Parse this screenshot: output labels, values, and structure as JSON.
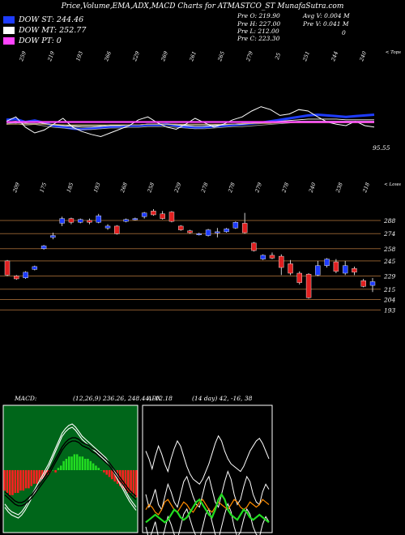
{
  "header": {
    "title": "Price,Volume,EMA,ADX,MACD Charts for ATMASTCO_ST MunafaSutra.com"
  },
  "legend": [
    {
      "label": "DOW ST: 244.46",
      "color": "#1e3cff"
    },
    {
      "label": "DOW MT: 252.77",
      "color": "#ffffff"
    },
    {
      "label": "DOW PT: 0",
      "color": "#ff44ff"
    }
  ],
  "stats": {
    "prev_open": "Pre   O: 219.90",
    "prev_high": "Pre   H: 227.00",
    "prev_low": "Pre   L: 212.00",
    "prev_close": "Pre   C: 223.30",
    "avg_vol": "Avg V: 0.004  M",
    "prev_vol": "Pre   V: 0.041 M",
    "zero": "0"
  },
  "colors": {
    "up": "#1e3cff",
    "down": "#e02020",
    "ema": "#1e3cff",
    "pt": "#ff44ff",
    "macd_up": "#22dd22",
    "macd_down": "#ff2020",
    "adx": "#ff8c00",
    "grid": "#8a5a2e"
  },
  "chart_data": [
    {
      "type": "line",
      "name": "ema-panel",
      "top_labels": [
        "259",
        "219",
        "193",
        "266",
        "229",
        "269",
        "261",
        "265",
        "279",
        "25",
        "251",
        "244",
        "240"
      ],
      "top_right_label": "< Tops",
      "bottom_labels": [
        "209",
        "175",
        "185",
        "193",
        "268",
        "258",
        "229",
        "278",
        "278",
        "279",
        "278",
        "240",
        "238",
        "218"
      ],
      "bottom_right_label": "< Lows",
      "last_value_label": "95.55",
      "series": [
        {
          "values": [
            58,
            59,
            55,
            57,
            54,
            50,
            48,
            46,
            45,
            46,
            47,
            48,
            49,
            50,
            50,
            51,
            51,
            52,
            50,
            48,
            47,
            48,
            49,
            50,
            51,
            52,
            53,
            54,
            56,
            58,
            60,
            62,
            64,
            65,
            64,
            63,
            62,
            63,
            64,
            65
          ]
        },
        {
          "values": [
            55,
            56,
            54,
            55,
            53,
            51,
            50,
            49,
            48,
            48,
            49,
            50,
            50,
            51,
            51,
            52,
            52,
            52,
            51,
            50,
            49,
            49,
            50,
            51,
            52,
            52,
            53,
            54,
            55,
            56,
            57,
            58,
            59,
            59,
            59,
            59,
            58,
            58,
            58,
            58
          ]
        },
        {
          "values": [
            53,
            54,
            53,
            53,
            52,
            51,
            51,
            50,
            50,
            50,
            50,
            51,
            51,
            51,
            51,
            52,
            52,
            52,
            52,
            51,
            51,
            51,
            51,
            52,
            52,
            53,
            53,
            54,
            54,
            55,
            55,
            56,
            56,
            56,
            56,
            56,
            56,
            56,
            56,
            56
          ]
        },
        {
          "values": [
            52,
            52,
            52,
            52,
            52,
            52,
            51,
            51,
            51,
            51,
            51,
            51,
            51,
            51,
            51,
            52,
            52,
            52,
            52,
            52,
            52,
            52,
            52,
            52,
            52,
            53,
            53,
            53,
            53,
            54,
            54,
            54,
            54,
            54,
            54,
            54,
            54,
            54,
            54,
            54
          ]
        },
        {
          "values": [
            56,
            62,
            48,
            40,
            44,
            52,
            60,
            48,
            42,
            38,
            35,
            40,
            45,
            50,
            58,
            62,
            54,
            48,
            45,
            52,
            60,
            54,
            48,
            52,
            58,
            62,
            70,
            76,
            72,
            64,
            66,
            72,
            70,
            62,
            55,
            52,
            50,
            56,
            50,
            48
          ]
        },
        {
          "values": [
            55,
            55,
            55,
            55,
            55,
            55,
            55,
            55,
            55,
            55,
            55,
            55,
            55,
            55,
            55,
            55,
            55,
            55,
            55,
            55,
            55,
            55,
            55,
            55,
            55,
            55,
            55,
            55,
            55,
            55,
            55,
            55,
            55,
            55,
            55,
            55,
            55,
            55,
            55,
            55
          ]
        }
      ]
    },
    {
      "type": "candlestick",
      "name": "price-panel",
      "price_levels": [
        "288",
        "274",
        "258",
        "245",
        "229",
        "215",
        "204",
        "193"
      ],
      "candles": [
        {
          "o": 245,
          "h": 246,
          "l": 229,
          "c": 230
        },
        {
          "o": 229,
          "h": 230,
          "l": 225,
          "c": 226
        },
        {
          "o": 227,
          "h": 234,
          "l": 226,
          "c": 233
        },
        {
          "o": 236,
          "h": 240,
          "l": 235,
          "c": 239
        },
        {
          "o": 258,
          "h": 262,
          "l": 257,
          "c": 261
        },
        {
          "o": 270,
          "h": 275,
          "l": 268,
          "c": 272
        },
        {
          "o": 285,
          "h": 292,
          "l": 282,
          "c": 290
        },
        {
          "o": 290,
          "h": 291,
          "l": 284,
          "c": 286
        },
        {
          "o": 286,
          "h": 290,
          "l": 285,
          "c": 289
        },
        {
          "o": 288,
          "h": 290,
          "l": 284,
          "c": 286
        },
        {
          "o": 286,
          "h": 295,
          "l": 285,
          "c": 293
        },
        {
          "o": 280,
          "h": 284,
          "l": 278,
          "c": 282
        },
        {
          "o": 282,
          "h": 283,
          "l": 273,
          "c": 274
        },
        {
          "o": 287,
          "h": 290,
          "l": 286,
          "c": 289
        },
        {
          "o": 289,
          "h": 291,
          "l": 288,
          "c": 290
        },
        {
          "o": 292,
          "h": 297,
          "l": 290,
          "c": 296
        },
        {
          "o": 298,
          "h": 300,
          "l": 293,
          "c": 294
        },
        {
          "o": 295,
          "h": 298,
          "l": 289,
          "c": 290
        },
        {
          "o": 297,
          "h": 298,
          "l": 286,
          "c": 287
        },
        {
          "o": 282,
          "h": 283,
          "l": 277,
          "c": 278
        },
        {
          "o": 277,
          "h": 278,
          "l": 274,
          "c": 275
        },
        {
          "o": 273,
          "h": 275,
          "l": 272,
          "c": 274
        },
        {
          "o": 272,
          "h": 279,
          "l": 271,
          "c": 278
        },
        {
          "o": 275,
          "h": 280,
          "l": 270,
          "c": 276
        },
        {
          "o": 276,
          "h": 280,
          "l": 275,
          "c": 279
        },
        {
          "o": 280,
          "h": 287,
          "l": 279,
          "c": 286
        },
        {
          "o": 285,
          "h": 296,
          "l": 274,
          "c": 275
        },
        {
          "o": 264,
          "h": 265,
          "l": 255,
          "c": 256
        },
        {
          "o": 247,
          "h": 252,
          "l": 246,
          "c": 251
        },
        {
          "o": 251,
          "h": 254,
          "l": 247,
          "c": 248
        },
        {
          "o": 250,
          "h": 252,
          "l": 230,
          "c": 238
        },
        {
          "o": 242,
          "h": 246,
          "l": 230,
          "c": 232
        },
        {
          "o": 232,
          "h": 234,
          "l": 220,
          "c": 222
        },
        {
          "o": 231,
          "h": 232,
          "l": 205,
          "c": 206
        },
        {
          "o": 230,
          "h": 245,
          "l": 229,
          "c": 240
        },
        {
          "o": 240,
          "h": 248,
          "l": 238,
          "c": 247
        },
        {
          "o": 244,
          "h": 247,
          "l": 232,
          "c": 234
        },
        {
          "o": 232,
          "h": 245,
          "l": 230,
          "c": 240
        },
        {
          "o": 237,
          "h": 239,
          "l": 230,
          "c": 233
        },
        {
          "o": 224,
          "h": 226,
          "l": 217,
          "c": 218
        },
        {
          "o": 219,
          "h": 227,
          "l": 212,
          "c": 223
        }
      ]
    },
    {
      "type": "bar",
      "name": "macd-panel",
      "title": "MACD:",
      "readout": "(12,26,9) 236.26, 248.44, -12.18",
      "histogram": [
        -9,
        -10,
        -11,
        -11,
        -10,
        -10,
        -9,
        -9,
        -8,
        -8,
        -7,
        -6,
        -6,
        -5,
        -4,
        -3,
        -2,
        -1,
        0,
        -1,
        1,
        2,
        4,
        5,
        6,
        6,
        7,
        7,
        6,
        6,
        5,
        5,
        4,
        3,
        2,
        1,
        0,
        -1,
        -2,
        -3,
        -4,
        -5,
        -6,
        -7,
        -8,
        -9,
        -10,
        -10,
        -11,
        -12
      ],
      "lines": [
        {
          "values": [
            -22,
            -25,
            -27,
            -28,
            -29,
            -27,
            -24,
            -20,
            -16,
            -12,
            -8,
            -4,
            0,
            4,
            9,
            14,
            19,
            24,
            27,
            29,
            30,
            28,
            25,
            22,
            20,
            18,
            16,
            14,
            12,
            10,
            8,
            5,
            2,
            -2,
            -6,
            -10,
            -14,
            -18,
            -21,
            -24
          ]
        },
        {
          "values": [
            -14,
            -16,
            -18,
            -20,
            -21,
            -21,
            -20,
            -18,
            -16,
            -13,
            -10,
            -7,
            -4,
            -1,
            3,
            7,
            11,
            15,
            18,
            20,
            21,
            21,
            20,
            18,
            17,
            16,
            14,
            13,
            11,
            9,
            7,
            5,
            2,
            -1,
            -4,
            -7,
            -10,
            -13,
            -15,
            -17
          ]
        }
      ]
    },
    {
      "type": "line",
      "name": "adx-panel",
      "title": "ADX",
      "readout": "(14 day) 42, -16, 38",
      "series": [
        {
          "values": [
            30,
            20,
            26,
            34,
            22,
            18,
            28,
            38,
            32,
            24,
            20,
            30,
            40,
            44,
            36,
            28,
            22,
            20,
            30,
            40,
            44,
            34,
            24,
            20,
            30,
            40,
            48,
            42,
            30,
            22,
            26,
            36,
            44,
            40,
            30,
            24,
            22,
            32,
            38,
            34
          ]
        },
        {
          "values": [
            62,
            56,
            48,
            58,
            66,
            60,
            52,
            46,
            56,
            64,
            70,
            66,
            58,
            50,
            44,
            40,
            38,
            36,
            40,
            46,
            52,
            60,
            68,
            74,
            70,
            62,
            56,
            52,
            50,
            48,
            46,
            50,
            56,
            62,
            66,
            70,
            72,
            68,
            62,
            56
          ]
        },
        {
          "values": [
            64,
            58,
            50,
            60,
            68,
            62,
            54,
            48,
            58,
            66,
            72,
            68,
            60,
            52,
            46,
            42,
            40,
            38,
            42,
            48,
            54,
            62,
            70,
            76,
            72,
            64,
            58,
            54,
            52,
            50,
            48,
            52,
            58,
            64,
            68,
            72,
            74,
            70,
            64,
            58
          ]
        },
        {
          "values": [
            18,
            22,
            20,
            16,
            14,
            18,
            24,
            26,
            22,
            18,
            16,
            20,
            24,
            22,
            18,
            16,
            20,
            24,
            26,
            22,
            18,
            16,
            20,
            24,
            22,
            20,
            18,
            22,
            26,
            24,
            20,
            18,
            20,
            24,
            22,
            20,
            22,
            26,
            24,
            22
          ]
        },
        {
          "values": [
            8,
            10,
            12,
            14,
            12,
            10,
            8,
            10,
            14,
            18,
            16,
            12,
            10,
            12,
            16,
            20,
            24,
            26,
            22,
            18,
            14,
            12,
            18,
            26,
            30,
            26,
            18,
            14,
            12,
            10,
            14,
            18,
            16,
            12,
            10,
            12,
            14,
            12,
            10,
            8
          ]
        }
      ]
    }
  ]
}
